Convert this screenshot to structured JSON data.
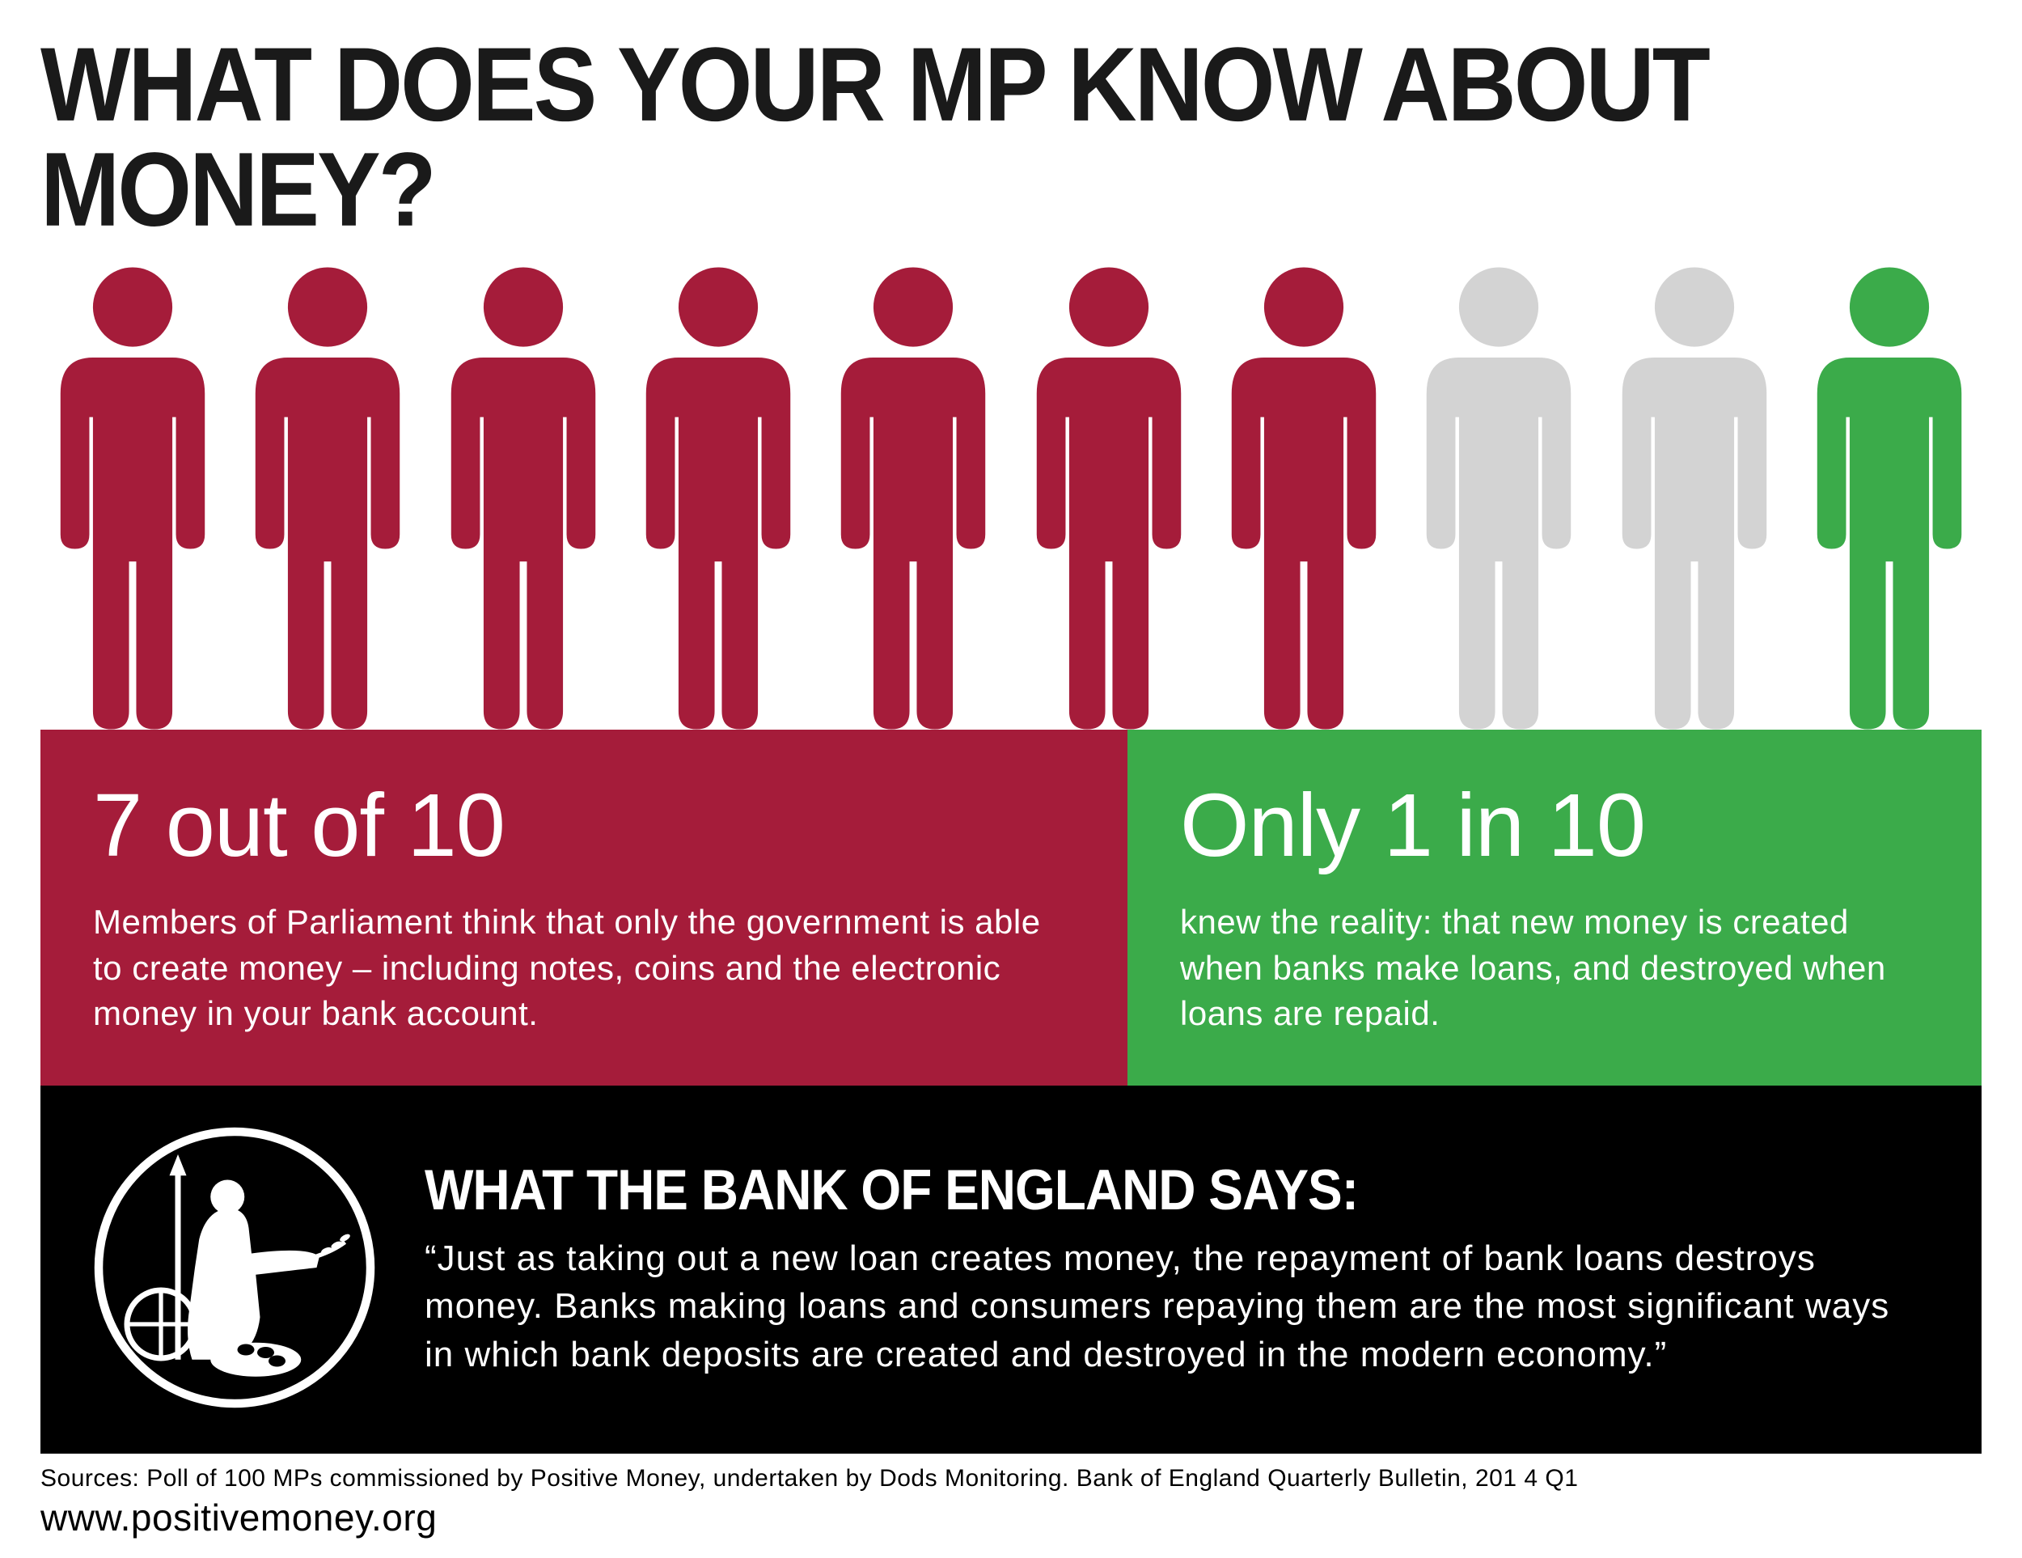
{
  "title": "WHAT DOES YOUR MP KNOW ABOUT MONEY?",
  "people": {
    "total": 10,
    "colors": [
      "#a51c3a",
      "#a51c3a",
      "#a51c3a",
      "#a51c3a",
      "#a51c3a",
      "#a51c3a",
      "#a51c3a",
      "#d3d3d3",
      "#d3d3d3",
      "#3bab4a"
    ]
  },
  "stats": {
    "left": {
      "bg": "#a51c3a",
      "headline": "7 out of 10",
      "body": "Members of Parliament think that only the government is able to create money – including notes, coins and the electronic money in your bank account."
    },
    "right": {
      "bg": "#3bab4a",
      "headline": "Only 1 in 10",
      "body": "knew the reality: that new money is created when banks make loans, and destroyed when loans are repaid."
    }
  },
  "quote": {
    "title": "WHAT THE BANK OF ENGLAND SAYS:",
    "body": "“Just as taking out a new loan creates money, the repayment of bank loans destroys money. Banks making loans and consumers repaying them are the most significant ways in which bank deposits are created and destroyed in the modern economy.”"
  },
  "footer": {
    "sources": "Sources: Poll of 100 MPs commissioned by Positive Money, undertaken by Dods Monitoring. Bank of England Quarterly Bulletin, 201 4 Q1",
    "url": "www.positivemoney.org"
  },
  "styling": {
    "background": "#ffffff",
    "title_color": "#1a1a1a",
    "title_fontsize": 118,
    "stat_headline_fontsize": 110,
    "stat_body_fontsize": 42,
    "quote_bg": "#000000",
    "quote_title_fontsize": 64,
    "quote_body_fontsize": 44,
    "footer_fontsize": 30,
    "url_fontsize": 46
  }
}
